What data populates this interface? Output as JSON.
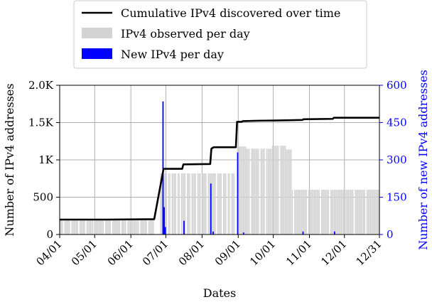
{
  "chart_data": {
    "type": "bar",
    "xlabel": "Dates",
    "ylabel": "Number of IPv4 addresses",
    "ylabel_right": "Number of new IPv4 addresses",
    "x_tick_labels": [
      "04/01",
      "05/01",
      "06/01",
      "07/01",
      "08/01",
      "09/01",
      "10/01",
      "11/01",
      "12/01",
      "12/31"
    ],
    "x_tick_days": [
      0,
      30,
      61,
      91,
      122,
      153,
      183,
      214,
      244,
      274
    ],
    "x_range_days": [
      0,
      274
    ],
    "y_left": {
      "ylim": [
        0,
        2000
      ],
      "ticks": [
        0,
        500,
        1000,
        1500,
        2000
      ],
      "tick_labels": [
        "0",
        "500",
        "1K",
        "1.5K",
        "2.0K"
      ]
    },
    "y_right": {
      "ylim": [
        0,
        600
      ],
      "ticks": [
        0,
        150,
        300,
        450,
        600
      ],
      "tick_labels": [
        "0",
        "150",
        "300",
        "450",
        "600"
      ]
    },
    "grid": true,
    "legend_position": "top-center",
    "colors": {
      "cumulative": "#000000",
      "observed": "#d3d3d3",
      "new": "#0000ff",
      "right_axis": "#0000ff"
    },
    "series": [
      {
        "name": "Cumulative IPv4 discovered over time",
        "kind": "line",
        "axis": "left",
        "points": [
          [
            0,
            200
          ],
          [
            40,
            200
          ],
          [
            81,
            205
          ],
          [
            89,
            880
          ],
          [
            90,
            880
          ],
          [
            105,
            880
          ],
          [
            106,
            940
          ],
          [
            129,
            945
          ],
          [
            130,
            1150
          ],
          [
            132,
            1170
          ],
          [
            151,
            1170
          ],
          [
            152,
            1510
          ],
          [
            156,
            1510
          ],
          [
            157,
            1520
          ],
          [
            170,
            1525
          ],
          [
            194,
            1530
          ],
          [
            208,
            1535
          ],
          [
            209,
            1545
          ],
          [
            234,
            1550
          ],
          [
            235,
            1565
          ],
          [
            274,
            1565
          ]
        ]
      },
      {
        "name": "IPv4 observed per day",
        "kind": "bars",
        "axis": "left",
        "ranges": [
          {
            "from": 0,
            "to": 81,
            "value": 200
          },
          {
            "from": 86,
            "to": 151,
            "value": 820
          },
          {
            "from": 152,
            "to": 160,
            "value": 1180
          },
          {
            "from": 160,
            "to": 182,
            "value": 1150
          },
          {
            "from": 182,
            "to": 194,
            "value": 1190
          },
          {
            "from": 194,
            "to": 199,
            "value": 1140
          },
          {
            "from": 199,
            "to": 274,
            "value": 600
          }
        ],
        "gaps": [
          3,
          9,
          16,
          22,
          29,
          38,
          44,
          52,
          57,
          68,
          75,
          92,
          95,
          100,
          103,
          108,
          112,
          117,
          121,
          126,
          134,
          139,
          143,
          146,
          150,
          163,
          171,
          176,
          188,
          200,
          212,
          223,
          231,
          252,
          262
        ]
      },
      {
        "name": "New IPv4 per day",
        "kind": "bars",
        "axis": "right",
        "days": [
          88,
          89,
          90,
          106,
          129,
          131,
          152,
          157,
          208,
          235
        ],
        "values": [
          535,
          110,
          30,
          55,
          205,
          12,
          330,
          8,
          12,
          12
        ]
      }
    ]
  }
}
